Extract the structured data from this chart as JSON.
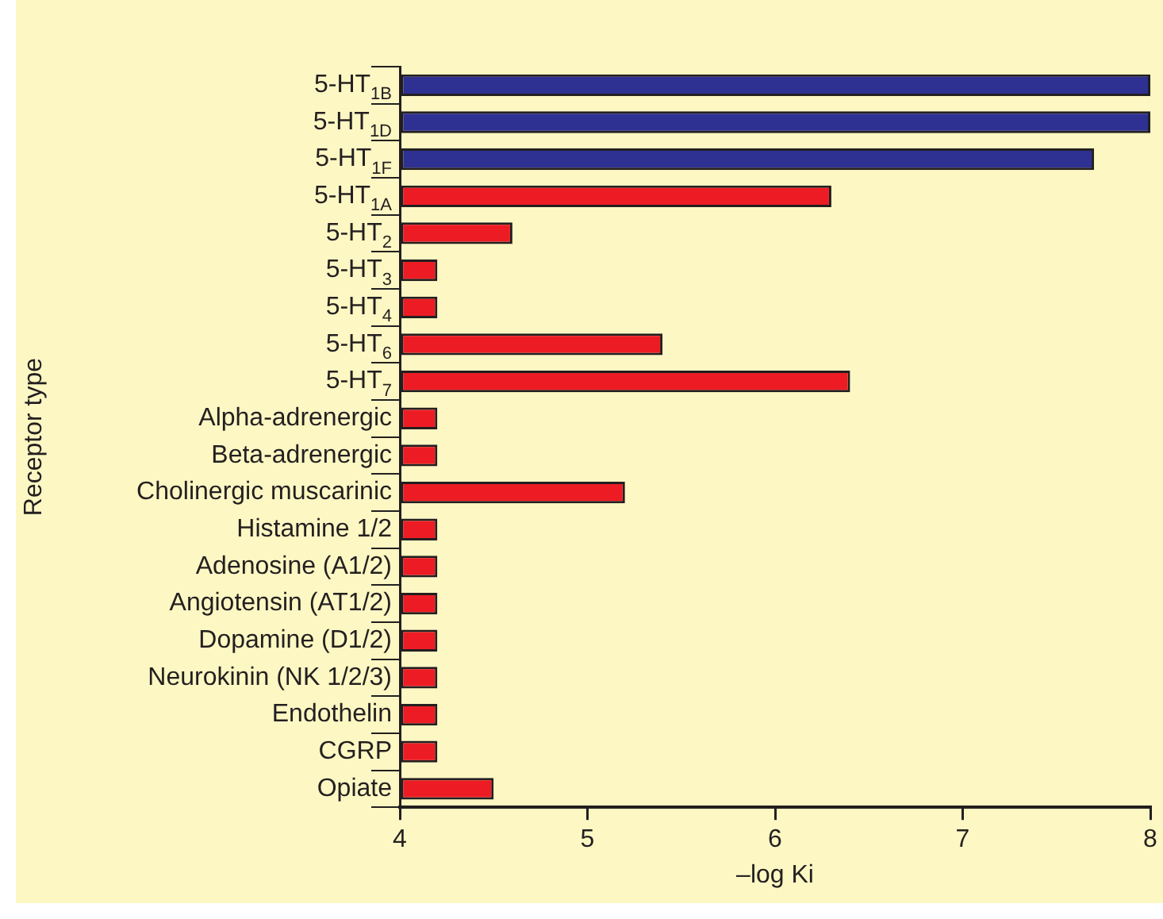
{
  "chart_data": {
    "type": "bar",
    "orientation": "horizontal",
    "xlabel": "–log Ki",
    "ylabel": "Receptor type",
    "categories": [
      "5-HT$_{1B}$",
      "5-HT$_{1D}$",
      "5-HT$_{1F}$",
      "5-HT$_{1A}$",
      "5-HT$_{2}$",
      "5-HT$_{3}$",
      "5-HT$_{4}$",
      "5-HT$_{6}$",
      "5-HT$_{7}$",
      "Alpha-adrenergic",
      "Beta-adrenergic",
      "Cholinergic muscarinic",
      "Histamine 1/2",
      "Adenosine (A1/2)",
      "Angiotensin (AT1/2)",
      "Dopamine (D1/2)",
      "Neurokinin (NK 1/2/3)",
      "Endothelin",
      "CGRP",
      "Opiate"
    ],
    "values": [
      8.0,
      8.0,
      7.7,
      6.3,
      4.6,
      4.2,
      4.2,
      5.4,
      6.4,
      4.2,
      4.2,
      5.2,
      4.2,
      4.2,
      4.2,
      4.2,
      4.2,
      4.2,
      4.2,
      4.5
    ],
    "colors": [
      "#2e3192",
      "#2e3192",
      "#2e3192",
      "#ed1c24",
      "#ed1c24",
      "#ed1c24",
      "#ed1c24",
      "#ed1c24",
      "#ed1c24",
      "#ed1c24",
      "#ed1c24",
      "#ed1c24",
      "#ed1c24",
      "#ed1c24",
      "#ed1c24",
      "#ed1c24",
      "#ed1c24",
      "#ed1c24",
      "#ed1c24",
      "#ed1c24"
    ],
    "xlim": [
      4,
      8
    ],
    "xticks": [
      4,
      5,
      6,
      7,
      8
    ],
    "grid": false,
    "legend": false
  }
}
